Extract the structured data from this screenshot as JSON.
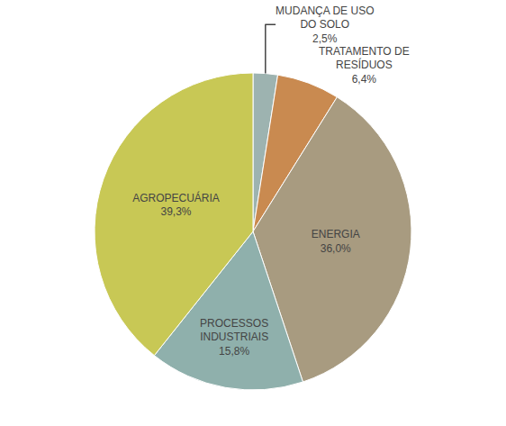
{
  "chart_data": {
    "type": "pie",
    "categories": [
      "MUDANÇA DE USO\nDO SOLO",
      "TRATAMENTO DE\nRESÍDUOS",
      "ENERGIA",
      "PROCESSOS\nINDUSTRIAIS",
      "AGROPECUÁRIA"
    ],
    "values": [
      2.5,
      6.4,
      36.0,
      15.8,
      39.3
    ],
    "value_labels": [
      "2,5%",
      "6,4%",
      "36,0%",
      "15,8%",
      "39,3%"
    ],
    "colors": [
      "#9db3b0",
      "#c98a50",
      "#a89b80",
      "#8fb0ac",
      "#c8c855"
    ],
    "data_labels": true
  }
}
